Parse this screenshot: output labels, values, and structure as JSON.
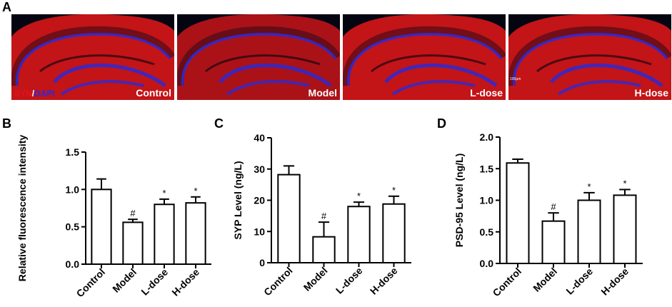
{
  "panel_letters": {
    "a": "A",
    "b": "B",
    "c": "C",
    "d": "D"
  },
  "micrographs": {
    "stain_syn": "SYN",
    "stain_sep": "/",
    "stain_dapi": "DAPI",
    "scale_text": "100μm",
    "labels": [
      "Control",
      "Model",
      "L-dose",
      "H-dose"
    ],
    "colors": {
      "red": "#d8161a",
      "blue": "#2a2ad6",
      "background": "#050512"
    }
  },
  "chart_data": [
    {
      "type": "bar",
      "panel": "B",
      "categories": [
        "Control",
        "Model",
        "L-dose",
        "H-dose"
      ],
      "values": [
        1.0,
        0.56,
        0.8,
        0.82
      ],
      "errors": [
        0.14,
        0.04,
        0.07,
        0.08
      ],
      "annotations": [
        "",
        "#",
        "*",
        "*"
      ],
      "ylabel": "Relative fluorescence intensity",
      "ylim": [
        0,
        1.5
      ],
      "yticks": [
        "0.0",
        "0.5",
        "1.0",
        "1.5"
      ],
      "ytick_values": [
        0,
        0.5,
        1.0,
        1.5
      ],
      "bar_color": "#ffffff",
      "edge_color": "#000000"
    },
    {
      "type": "bar",
      "panel": "C",
      "categories": [
        "Control",
        "Model",
        "L-dose",
        "H-dose"
      ],
      "values": [
        28.2,
        8.3,
        18.0,
        18.8
      ],
      "errors": [
        2.8,
        4.7,
        1.4,
        2.5
      ],
      "annotations": [
        "",
        "#",
        "*",
        "*"
      ],
      "ylabel": "SYP Level (ng/L)",
      "ylim": [
        0,
        40
      ],
      "yticks": [
        "0",
        "10",
        "20",
        "30",
        "40"
      ],
      "ytick_values": [
        0,
        10,
        20,
        30,
        40
      ],
      "bar_color": "#ffffff",
      "edge_color": "#000000"
    },
    {
      "type": "bar",
      "panel": "D",
      "categories": [
        "Control",
        "Model",
        "L-dose",
        "H-dose"
      ],
      "values": [
        1.59,
        0.67,
        1.0,
        1.08
      ],
      "errors": [
        0.06,
        0.13,
        0.12,
        0.09
      ],
      "annotations": [
        "",
        "#",
        "*",
        "*"
      ],
      "ylabel": "PSD-95 Level (ng/L)",
      "ylim": [
        0,
        2.0
      ],
      "yticks": [
        "0.0",
        "0.5",
        "1.0",
        "1.5",
        "2.0"
      ],
      "ytick_values": [
        0,
        0.5,
        1.0,
        1.5,
        2.0
      ],
      "bar_color": "#ffffff",
      "edge_color": "#000000"
    }
  ]
}
